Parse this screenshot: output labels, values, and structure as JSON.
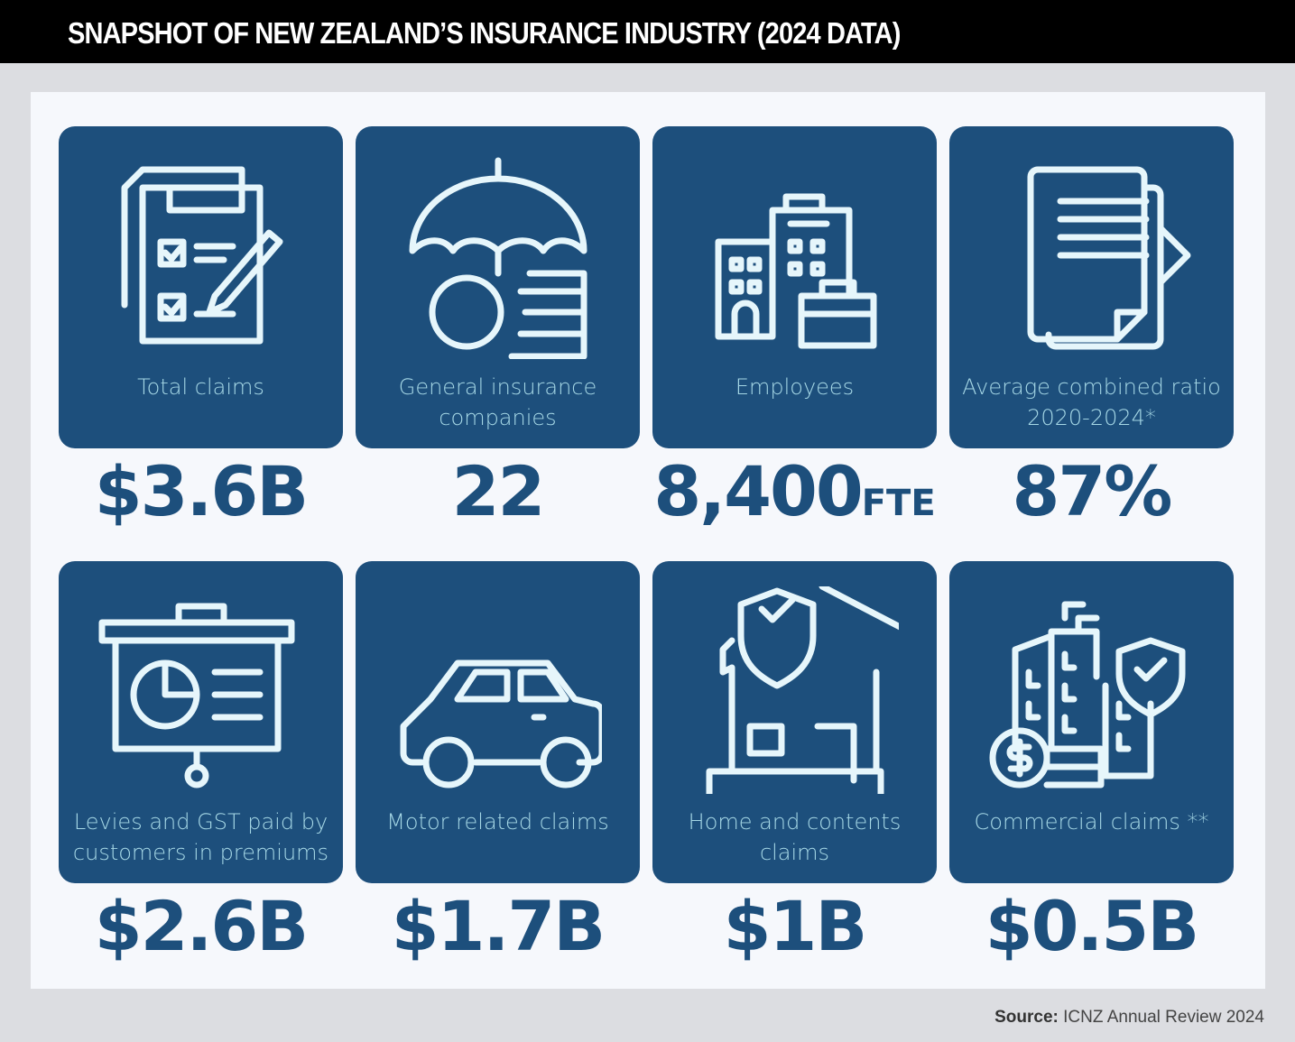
{
  "header": {
    "title": "SNAPSHOT OF NEW ZEALAND’S INSURANCE INDUSTRY (2024 DATA)"
  },
  "stats": [
    {
      "label": "Total claims",
      "value": "$3.6B",
      "icon": "claims-form-icon"
    },
    {
      "label": "General insurance companies",
      "value": "22",
      "icon": "umbrella-coins-icon"
    },
    {
      "label": "Employees",
      "value": "8,400",
      "unit": "FTE",
      "icon": "office-buildings-icon"
    },
    {
      "label": "Average combined ratio 2020-2024*",
      "value": "87%",
      "icon": "document-icon"
    },
    {
      "label": "Levies and GST paid by customers in premiums",
      "value": "$2.6B",
      "icon": "presentation-board-icon"
    },
    {
      "label": "Motor related claims",
      "value": "$1.7B",
      "icon": "car-icon"
    },
    {
      "label": "Home and contents claims",
      "value": "$1B",
      "icon": "house-shield-icon"
    },
    {
      "label": "Commercial claims **",
      "value": "$0.5B",
      "icon": "commercial-building-icon"
    }
  ],
  "source": {
    "prefix": "Source:",
    "text": "ICNZ Annual Review 2024"
  },
  "colors": {
    "card": "#1d4f7c",
    "label": "#a6d8e6",
    "value": "#1d4f7c",
    "panel": "#f6f8fc"
  }
}
